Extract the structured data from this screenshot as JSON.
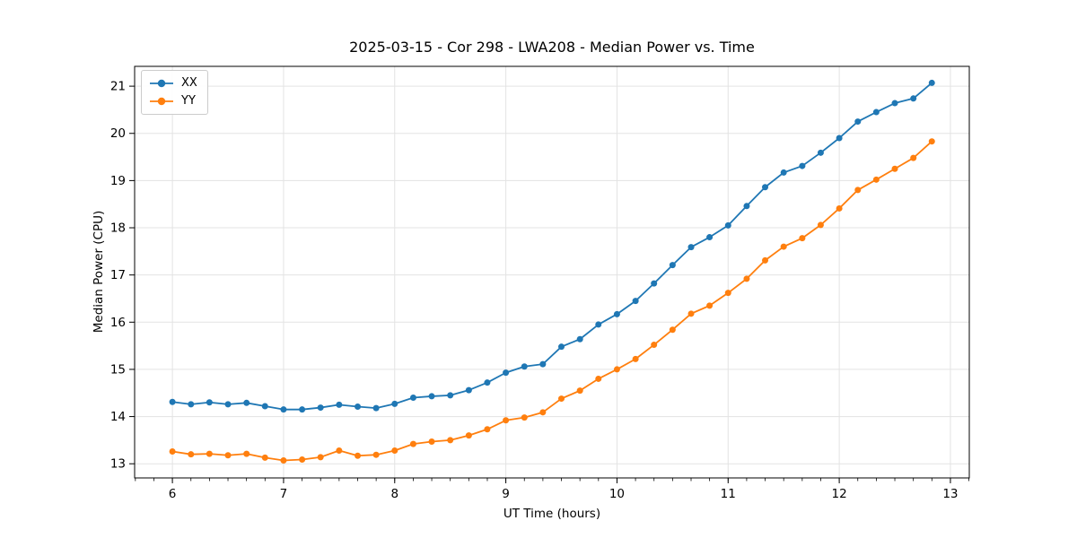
{
  "chart_data": {
    "type": "line",
    "title": "2025-03-15 - Cor 298 - LWA208 - Median Power vs. Time",
    "xlabel": "UT Time (hours)",
    "ylabel": "Median Power (CPU)",
    "legend_position": "upper-left",
    "grid": true,
    "grid_color": "#e3e3e3",
    "background_color": "#ffffff",
    "xlim": [
      5.66,
      13.17
    ],
    "ylim": [
      12.7,
      21.42
    ],
    "xticks": [
      6,
      7,
      8,
      9,
      10,
      11,
      12,
      13
    ],
    "yticks": [
      13,
      14,
      15,
      16,
      17,
      18,
      19,
      20,
      21
    ],
    "x_minor_step": 0.1666667,
    "x": [
      6.0,
      6.167,
      6.333,
      6.5,
      6.667,
      6.833,
      7.0,
      7.167,
      7.333,
      7.5,
      7.667,
      7.833,
      8.0,
      8.167,
      8.333,
      8.5,
      8.667,
      8.833,
      9.0,
      9.167,
      9.333,
      9.5,
      9.667,
      9.833,
      10.0,
      10.167,
      10.333,
      10.5,
      10.667,
      10.833,
      11.0,
      11.167,
      11.333,
      11.5,
      11.667,
      11.833,
      12.0,
      12.167,
      12.333,
      12.5,
      12.667,
      12.833
    ],
    "series": [
      {
        "name": "XX",
        "color": "#1f77b4",
        "marker": "circle",
        "values": [
          14.31,
          14.26,
          14.3,
          14.26,
          14.29,
          14.22,
          14.15,
          14.15,
          14.19,
          14.25,
          14.21,
          14.18,
          14.27,
          14.4,
          14.43,
          14.45,
          14.56,
          14.72,
          14.93,
          15.06,
          15.11,
          15.48,
          15.64,
          15.95,
          16.17,
          16.45,
          16.82,
          17.21,
          17.59,
          17.8,
          18.05,
          18.46,
          18.86,
          19.17,
          19.31,
          19.59,
          19.9,
          20.25,
          20.45,
          20.64,
          20.74,
          21.07
        ]
      },
      {
        "name": "YY",
        "color": "#ff7f0e",
        "marker": "circle",
        "values": [
          13.26,
          13.2,
          13.21,
          13.18,
          13.21,
          13.13,
          13.07,
          13.09,
          13.14,
          13.28,
          13.17,
          13.19,
          13.28,
          13.42,
          13.47,
          13.5,
          13.6,
          13.73,
          13.92,
          13.98,
          14.09,
          14.38,
          14.55,
          14.8,
          15.0,
          15.22,
          15.52,
          15.84,
          16.18,
          16.35,
          16.62,
          16.92,
          17.31,
          17.6,
          17.78,
          18.06,
          18.41,
          18.8,
          19.02,
          19.25,
          19.48,
          19.83
        ]
      }
    ]
  }
}
